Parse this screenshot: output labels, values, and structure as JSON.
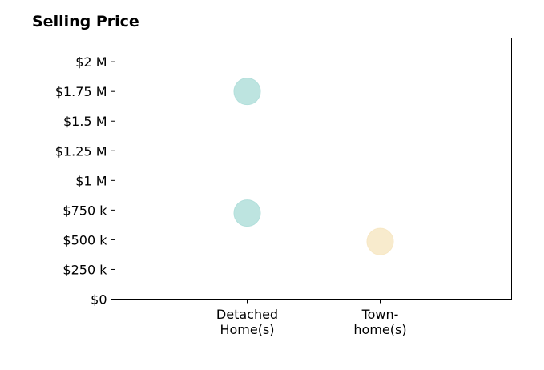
{
  "chart_data": {
    "type": "scatter",
    "title": "Selling Price",
    "xlabel": "",
    "ylabel": "",
    "categories": [
      [
        "Detached",
        "Home(s)"
      ],
      [
        "Town-",
        "home(s)"
      ]
    ],
    "ylim": [
      0,
      2200000
    ],
    "yticks": [
      {
        "value": 0,
        "label": "$0"
      },
      {
        "value": 250000,
        "label": "$250 k"
      },
      {
        "value": 500000,
        "label": "$500 k"
      },
      {
        "value": 750000,
        "label": "$750 k"
      },
      {
        "value": 1000000,
        "label": "$1 M"
      },
      {
        "value": 1250000,
        "label": "$1.25 M"
      },
      {
        "value": 1500000,
        "label": "$1.5 M"
      },
      {
        "value": 1750000,
        "label": "$1.75 M"
      },
      {
        "value": 2000000,
        "label": "$2 M"
      }
    ],
    "series": [
      {
        "category_index": 0,
        "values": [
          1750000,
          725000
        ],
        "color": "#b2dfdb"
      },
      {
        "category_index": 1,
        "values": [
          485000
        ],
        "color": "#f7e7c4"
      }
    ],
    "grid": false,
    "legend": "none"
  }
}
